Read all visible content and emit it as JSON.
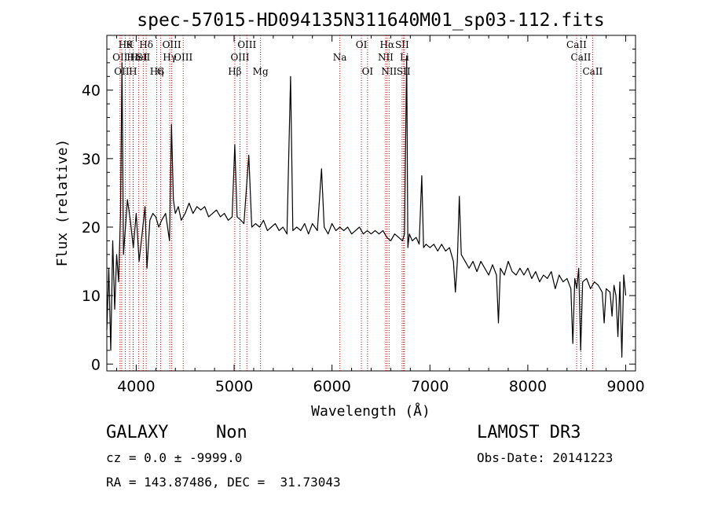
{
  "chart_data": {
    "type": "line",
    "title": "spec-57015-HD094135N311640M01_sp03-112.fits",
    "xlabel": "Wavelength (Å)",
    "ylabel": "Flux (relative)",
    "xlim": [
      3700,
      9100
    ],
    "ylim": [
      -1,
      48
    ],
    "xticks": [
      4000,
      5000,
      6000,
      7000,
      8000,
      9000
    ],
    "yticks": [
      0,
      10,
      20,
      30,
      40
    ],
    "grid": false,
    "line_color": "#000000",
    "marker_color": "#cc0000",
    "series": [
      {
        "points": [
          [
            3700,
            5
          ],
          [
            3720,
            14
          ],
          [
            3740,
            2
          ],
          [
            3760,
            18
          ],
          [
            3780,
            8
          ],
          [
            3800,
            16
          ],
          [
            3820,
            12
          ],
          [
            3840,
            22
          ],
          [
            3855,
            44
          ],
          [
            3870,
            16
          ],
          [
            3890,
            20
          ],
          [
            3910,
            24
          ],
          [
            3940,
            21
          ],
          [
            3970,
            17
          ],
          [
            4000,
            22
          ],
          [
            4030,
            15
          ],
          [
            4060,
            19
          ],
          [
            4090,
            23
          ],
          [
            4110,
            14
          ],
          [
            4140,
            21
          ],
          [
            4170,
            22
          ],
          [
            4200,
            21.5
          ],
          [
            4230,
            20
          ],
          [
            4260,
            21
          ],
          [
            4300,
            22
          ],
          [
            4340,
            18
          ],
          [
            4360,
            35
          ],
          [
            4380,
            24
          ],
          [
            4400,
            22
          ],
          [
            4430,
            23
          ],
          [
            4460,
            21
          ],
          [
            4500,
            22
          ],
          [
            4540,
            23.5
          ],
          [
            4580,
            22
          ],
          [
            4620,
            23
          ],
          [
            4660,
            22.5
          ],
          [
            4700,
            23
          ],
          [
            4740,
            21.5
          ],
          [
            4780,
            22
          ],
          [
            4820,
            22.5
          ],
          [
            4860,
            21.5
          ],
          [
            4900,
            22
          ],
          [
            4940,
            21
          ],
          [
            4980,
            21.5
          ],
          [
            5007,
            32
          ],
          [
            5030,
            21.5
          ],
          [
            5070,
            21
          ],
          [
            5100,
            20.5
          ],
          [
            5150,
            30.5
          ],
          [
            5180,
            20
          ],
          [
            5220,
            20.5
          ],
          [
            5260,
            20
          ],
          [
            5300,
            21
          ],
          [
            5340,
            19.5
          ],
          [
            5380,
            20
          ],
          [
            5420,
            20.5
          ],
          [
            5460,
            19.5
          ],
          [
            5500,
            20
          ],
          [
            5540,
            19
          ],
          [
            5577,
            42
          ],
          [
            5600,
            19.5
          ],
          [
            5640,
            20
          ],
          [
            5680,
            19.5
          ],
          [
            5720,
            20.5
          ],
          [
            5760,
            19
          ],
          [
            5800,
            20.5
          ],
          [
            5850,
            19.5
          ],
          [
            5893,
            28.5
          ],
          [
            5920,
            20
          ],
          [
            5960,
            19
          ],
          [
            6000,
            20.5
          ],
          [
            6040,
            19.5
          ],
          [
            6080,
            20
          ],
          [
            6120,
            19.5
          ],
          [
            6160,
            20
          ],
          [
            6200,
            19
          ],
          [
            6240,
            19.5
          ],
          [
            6280,
            20
          ],
          [
            6320,
            19
          ],
          [
            6360,
            19.5
          ],
          [
            6400,
            19
          ],
          [
            6440,
            19.5
          ],
          [
            6480,
            19
          ],
          [
            6520,
            19.5
          ],
          [
            6560,
            18.5
          ],
          [
            6600,
            18
          ],
          [
            6640,
            19
          ],
          [
            6680,
            18.5
          ],
          [
            6720,
            18
          ],
          [
            6740,
            19
          ],
          [
            6763,
            45
          ],
          [
            6775,
            17
          ],
          [
            6790,
            19
          ],
          [
            6820,
            18
          ],
          [
            6860,
            18.5
          ],
          [
            6890,
            17.5
          ],
          [
            6917,
            27.5
          ],
          [
            6935,
            17
          ],
          [
            6960,
            17.5
          ],
          [
            7000,
            17
          ],
          [
            7040,
            17.5
          ],
          [
            7080,
            16.5
          ],
          [
            7120,
            17.5
          ],
          [
            7160,
            16.5
          ],
          [
            7200,
            17
          ],
          [
            7240,
            15
          ],
          [
            7260,
            10.5
          ],
          [
            7280,
            15
          ],
          [
            7300,
            24.5
          ],
          [
            7320,
            16
          ],
          [
            7360,
            15
          ],
          [
            7400,
            14
          ],
          [
            7440,
            15
          ],
          [
            7480,
            13.5
          ],
          [
            7520,
            15
          ],
          [
            7560,
            14
          ],
          [
            7600,
            13
          ],
          [
            7640,
            14.5
          ],
          [
            7680,
            13
          ],
          [
            7700,
            6
          ],
          [
            7720,
            14
          ],
          [
            7760,
            13
          ],
          [
            7800,
            15
          ],
          [
            7840,
            13.5
          ],
          [
            7880,
            13
          ],
          [
            7920,
            14
          ],
          [
            7960,
            13
          ],
          [
            8000,
            14
          ],
          [
            8040,
            12.5
          ],
          [
            8080,
            13.5
          ],
          [
            8120,
            12
          ],
          [
            8160,
            13
          ],
          [
            8200,
            12.5
          ],
          [
            8240,
            13.5
          ],
          [
            8280,
            11
          ],
          [
            8320,
            13
          ],
          [
            8360,
            12
          ],
          [
            8400,
            12.5
          ],
          [
            8440,
            11
          ],
          [
            8460,
            3
          ],
          [
            8480,
            12.5
          ],
          [
            8500,
            11
          ],
          [
            8520,
            14
          ],
          [
            8540,
            2
          ],
          [
            8560,
            12
          ],
          [
            8600,
            12.5
          ],
          [
            8640,
            11
          ],
          [
            8680,
            12
          ],
          [
            8720,
            11.5
          ],
          [
            8760,
            10.5
          ],
          [
            8780,
            6
          ],
          [
            8800,
            11
          ],
          [
            8840,
            10.5
          ],
          [
            8860,
            7
          ],
          [
            8880,
            11.5
          ],
          [
            8900,
            10
          ],
          [
            8920,
            4
          ],
          [
            8940,
            12
          ],
          [
            8960,
            1
          ],
          [
            8980,
            13
          ],
          [
            9000,
            10
          ]
        ]
      }
    ],
    "line_markers": [
      {
        "x": 3835,
        "label": "OII",
        "row": 1
      },
      {
        "x": 3852,
        "label": "OII",
        "row": 2
      },
      {
        "x": 3889,
        "label": "Hθ",
        "row": 0
      },
      {
        "x": 3933,
        "label": "K",
        "row": 0
      },
      {
        "x": 3968,
        "label": "H",
        "row": 2
      },
      {
        "x": 3970,
        "label": "Hε",
        "row": 1
      },
      {
        "x": 4026,
        "label": "HeI",
        "row": 1
      },
      {
        "x": 4072,
        "label": "SII",
        "row": 1
      },
      {
        "x": 4102,
        "label": "Hδ",
        "row": 0
      },
      {
        "x": 4210,
        "label": "Hη",
        "row": 2
      },
      {
        "x": 4250,
        "label": "G",
        "row": 2
      },
      {
        "x": 4342,
        "label": "Hγ",
        "row": 1
      },
      {
        "x": 4363,
        "label": "OIII",
        "row": 0
      },
      {
        "x": 4480,
        "label": "OIII",
        "row": 1
      },
      {
        "x": 5007,
        "label": "Hβ",
        "row": 2
      },
      {
        "x": 5060,
        "label": "OIII",
        "row": 1
      },
      {
        "x": 5130,
        "label": "OIII",
        "row": 0
      },
      {
        "x": 5270,
        "label": "Mg",
        "row": 2
      },
      {
        "x": 6080,
        "label": "Na",
        "row": 1
      },
      {
        "x": 6300,
        "label": "OI",
        "row": 0
      },
      {
        "x": 6363,
        "label": "OI",
        "row": 2
      },
      {
        "x": 6548,
        "label": "NII",
        "row": 1
      },
      {
        "x": 6563,
        "label": "Hα",
        "row": 0
      },
      {
        "x": 6583,
        "label": "NII",
        "row": 2
      },
      {
        "x": 6716,
        "label": "SII",
        "row": 0
      },
      {
        "x": 6740,
        "label": "Li",
        "row": 1
      },
      {
        "x": 6731,
        "label": "SII",
        "row": 2
      },
      {
        "x": 8498,
        "label": "CaII",
        "row": 0
      },
      {
        "x": 8542,
        "label": "CaII",
        "row": 1
      },
      {
        "x": 8662,
        "label": "CaII",
        "row": 2
      }
    ]
  },
  "info": {
    "object_class": "GALAXY",
    "subclass": "Non",
    "survey": "LAMOST DR3",
    "cz": "cz = 0.0 ± -9999.0",
    "obs_date": "Obs-Date: 20141223",
    "coords": "RA = 143.87486, DEC =  31.73043"
  }
}
